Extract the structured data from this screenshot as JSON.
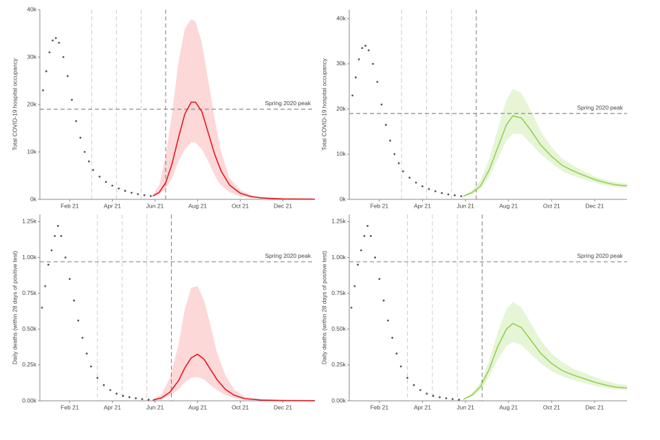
{
  "chart_data": [
    {
      "type": "line",
      "y_label": "Total COVID-19 hospital occupancy",
      "xlim": [
        -0.4,
        12.5
      ],
      "xticks": [
        {
          "value": 1,
          "label": "Feb 21"
        },
        {
          "value": 3,
          "label": "Apr 21"
        },
        {
          "value": 5,
          "label": "Jun 21"
        },
        {
          "value": 7,
          "label": "Aug 21"
        },
        {
          "value": 9,
          "label": "Oct 21"
        },
        {
          "value": 11,
          "label": "Dec 21"
        }
      ],
      "ylim": [
        0,
        40000
      ],
      "yticks": [
        {
          "value": 0,
          "label": "0k"
        },
        {
          "value": 10000,
          "label": "10k"
        },
        {
          "value": 20000,
          "label": "20k"
        },
        {
          "value": 30000,
          "label": "30k"
        },
        {
          "value": 40000,
          "label": "40k"
        }
      ],
      "annotation": {
        "label": "Spring 2020 peak",
        "value": 19000
      },
      "vlines": [
        2.03,
        3.19,
        4.35,
        5.5
      ],
      "observed": {
        "color": "#555555",
        "x": [
          -0.25,
          -0.1,
          0.05,
          0.2,
          0.35,
          0.5,
          0.7,
          0.9,
          1.1,
          1.3,
          1.5,
          1.7,
          1.9,
          2.1,
          2.4,
          2.7,
          3.0,
          3.3,
          3.6,
          3.9,
          4.2,
          4.5,
          4.8
        ],
        "values": [
          23000,
          27000,
          31000,
          33500,
          34000,
          33000,
          30000,
          26000,
          21000,
          16500,
          13000,
          10000,
          8000,
          6200,
          4800,
          3700,
          2900,
          2300,
          1800,
          1400,
          1100,
          900,
          700
        ]
      },
      "projection": {
        "color": "#e8141c",
        "band_color": "#fdd8d9",
        "x": [
          4.9,
          5.2,
          5.5,
          5.8,
          6.1,
          6.4,
          6.7,
          6.9,
          7.2,
          7.5,
          7.8,
          8.1,
          8.5,
          9,
          9.5,
          10,
          11,
          12.5
        ],
        "values": [
          700,
          1500,
          3500,
          7500,
          13000,
          18000,
          20500,
          20500,
          18500,
          14000,
          9500,
          6000,
          3000,
          1300,
          600,
          300,
          100,
          50
        ],
        "lower": [
          600,
          1000,
          2200,
          4500,
          8000,
          10500,
          12000,
          12000,
          10500,
          8000,
          5000,
          3000,
          1500,
          600,
          300,
          150,
          50,
          20
        ],
        "upper": [
          900,
          3000,
          9000,
          18000,
          29000,
          36000,
          38000,
          37500,
          33000,
          25000,
          17000,
          10000,
          4500,
          2000,
          900,
          400,
          150,
          80
        ]
      }
    },
    {
      "type": "line",
      "y_label": "Total COVID-19 hospital occupancy",
      "xlim": [
        -0.4,
        12.5
      ],
      "xticks": [
        {
          "value": 1,
          "label": "Feb 21"
        },
        {
          "value": 3,
          "label": "Apr 21"
        },
        {
          "value": 5,
          "label": "Jun 21"
        },
        {
          "value": 7,
          "label": "Aug 21"
        },
        {
          "value": 9,
          "label": "Oct 21"
        },
        {
          "value": 11,
          "label": "Dec 21"
        }
      ],
      "ylim": [
        0,
        42000
      ],
      "yticks": [
        {
          "value": 0,
          "label": "0k"
        },
        {
          "value": 10000,
          "label": "10k"
        },
        {
          "value": 20000,
          "label": "20k"
        },
        {
          "value": 30000,
          "label": "30k"
        },
        {
          "value": 40000,
          "label": "40k"
        }
      ],
      "annotation": {
        "label": "Spring 2020 peak",
        "value": 19000
      },
      "vlines": [
        2.03,
        3.19,
        4.35,
        5.5
      ],
      "observed": {
        "color": "#555555",
        "x": [
          -0.25,
          -0.1,
          0.05,
          0.2,
          0.35,
          0.5,
          0.7,
          0.9,
          1.1,
          1.3,
          1.5,
          1.7,
          1.9,
          2.1,
          2.4,
          2.7,
          3.0,
          3.3,
          3.6,
          3.9,
          4.2,
          4.5,
          4.8
        ],
        "values": [
          23000,
          27000,
          31000,
          33500,
          34000,
          33000,
          30000,
          26000,
          21000,
          16500,
          13000,
          10000,
          8000,
          6200,
          4800,
          3700,
          2900,
          2300,
          1800,
          1400,
          1100,
          900,
          700
        ]
      },
      "projection": {
        "color": "#8fd14f",
        "band_color": "#e6f5d6",
        "x": [
          4.9,
          5.3,
          5.7,
          6.1,
          6.5,
          6.9,
          7.2,
          7.6,
          8,
          8.5,
          9,
          9.5,
          10,
          10.5,
          11,
          11.5,
          12,
          12.5
        ],
        "values": [
          700,
          1500,
          3000,
          6500,
          11500,
          16500,
          18500,
          18000,
          15500,
          12000,
          9500,
          7500,
          6300,
          5300,
          4400,
          3700,
          3200,
          3000
        ],
        "lower": [
          600,
          1200,
          2300,
          5000,
          9000,
          13000,
          14500,
          14500,
          12500,
          10000,
          8000,
          6200,
          5200,
          4400,
          3700,
          3100,
          2700,
          2500
        ],
        "upper": [
          800,
          2000,
          4200,
          9000,
          15500,
          22000,
          24500,
          23500,
          20000,
          15000,
          11500,
          9000,
          7500,
          6200,
          5100,
          4300,
          3800,
          3500
        ]
      }
    },
    {
      "type": "line",
      "y_label": "Daily deaths (within 28 days of positive test)",
      "xlim": [
        -0.4,
        12.5
      ],
      "xticks": [
        {
          "value": 1,
          "label": "Feb 21"
        },
        {
          "value": 3,
          "label": "Apr 21"
        },
        {
          "value": 5,
          "label": "Jun 21"
        },
        {
          "value": 7,
          "label": "Aug 21"
        },
        {
          "value": 9,
          "label": "Oct 21"
        },
        {
          "value": 11,
          "label": "Dec 21"
        }
      ],
      "ylim": [
        0,
        1300
      ],
      "yticks": [
        {
          "value": 0,
          "label": "0.00k"
        },
        {
          "value": 250,
          "label": "0.25k"
        },
        {
          "value": 500,
          "label": "0.50k"
        },
        {
          "value": 750,
          "label": "0.75k"
        },
        {
          "value": 1000,
          "label": "1.00k"
        },
        {
          "value": 1250,
          "label": "1.25k"
        }
      ],
      "annotation": {
        "label": "Spring 2020 peak",
        "value": 970
      },
      "vlines": [
        2.3,
        3.46,
        4.62,
        5.77
      ],
      "observed": {
        "color": "#555555",
        "x": [
          -0.3,
          -0.15,
          0,
          0.15,
          0.3,
          0.45,
          0.6,
          0.8,
          1.0,
          1.2,
          1.4,
          1.6,
          1.8,
          2.0,
          2.3,
          2.6,
          2.9,
          3.2,
          3.5,
          3.8,
          4.1,
          4.4,
          4.7
        ],
        "values": [
          650,
          800,
          950,
          1050,
          1150,
          1220,
          1150,
          1000,
          850,
          700,
          560,
          440,
          330,
          240,
          160,
          110,
          75,
          50,
          35,
          25,
          18,
          12,
          8
        ]
      },
      "projection": {
        "color": "#e8141c",
        "band_color": "#fdd8d9",
        "x": [
          4.9,
          5.3,
          5.7,
          6.1,
          6.4,
          6.7,
          7.0,
          7.3,
          7.6,
          7.9,
          8.3,
          8.7,
          9.2,
          10,
          11,
          12.5
        ],
        "values": [
          5,
          20,
          60,
          140,
          230,
          300,
          325,
          290,
          220,
          150,
          80,
          40,
          15,
          5,
          2,
          1
        ],
        "lower": [
          3,
          10,
          35,
          80,
          130,
          160,
          165,
          150,
          110,
          75,
          40,
          20,
          8,
          3,
          1,
          0
        ],
        "upper": [
          8,
          45,
          160,
          390,
          640,
          790,
          800,
          700,
          530,
          340,
          180,
          80,
          30,
          10,
          3,
          1
        ]
      }
    },
    {
      "type": "line",
      "y_label": "Daily deaths (within 28 days of positive test)",
      "xlim": [
        -0.4,
        12.5
      ],
      "xticks": [
        {
          "value": 1,
          "label": "Feb 21"
        },
        {
          "value": 3,
          "label": "Apr 21"
        },
        {
          "value": 5,
          "label": "Jun 21"
        },
        {
          "value": 7,
          "label": "Aug 21"
        },
        {
          "value": 9,
          "label": "Oct 21"
        },
        {
          "value": 11,
          "label": "Dec 21"
        }
      ],
      "ylim": [
        0,
        1300
      ],
      "yticks": [
        {
          "value": 0,
          "label": "0.00k"
        },
        {
          "value": 250,
          "label": "0.25k"
        },
        {
          "value": 500,
          "label": "0.50k"
        },
        {
          "value": 750,
          "label": "0.75k"
        },
        {
          "value": 1000,
          "label": "1.00k"
        },
        {
          "value": 1250,
          "label": "1.25k"
        }
      ],
      "annotation": {
        "label": "Spring 2020 peak",
        "value": 970
      },
      "vlines": [
        2.3,
        3.46,
        4.62,
        5.77
      ],
      "observed": {
        "color": "#555555",
        "x": [
          -0.3,
          -0.15,
          0,
          0.15,
          0.3,
          0.45,
          0.6,
          0.8,
          1.0,
          1.2,
          1.4,
          1.6,
          1.8,
          2.0,
          2.3,
          2.6,
          2.9,
          3.2,
          3.5,
          3.8,
          4.1,
          4.4,
          4.7
        ],
        "values": [
          650,
          800,
          950,
          1050,
          1150,
          1220,
          1150,
          1000,
          850,
          700,
          560,
          440,
          330,
          240,
          160,
          110,
          75,
          50,
          35,
          25,
          18,
          12,
          8
        ]
      },
      "projection": {
        "color": "#8fd14f",
        "band_color": "#e6f5d6",
        "x": [
          4.9,
          5.3,
          5.7,
          6.1,
          6.5,
          6.9,
          7.2,
          7.6,
          8,
          8.5,
          9,
          9.5,
          10,
          10.5,
          11,
          11.5,
          12,
          12.5
        ],
        "values": [
          10,
          40,
          100,
          220,
          380,
          500,
          540,
          510,
          430,
          330,
          260,
          210,
          180,
          155,
          130,
          110,
          95,
          90
        ],
        "lower": [
          8,
          30,
          75,
          170,
          290,
          380,
          410,
          390,
          330,
          260,
          205,
          170,
          145,
          125,
          105,
          90,
          80,
          75
        ],
        "upper": [
          12,
          55,
          130,
          280,
          480,
          640,
          690,
          650,
          550,
          420,
          330,
          270,
          225,
          195,
          165,
          140,
          120,
          110
        ]
      }
    }
  ]
}
